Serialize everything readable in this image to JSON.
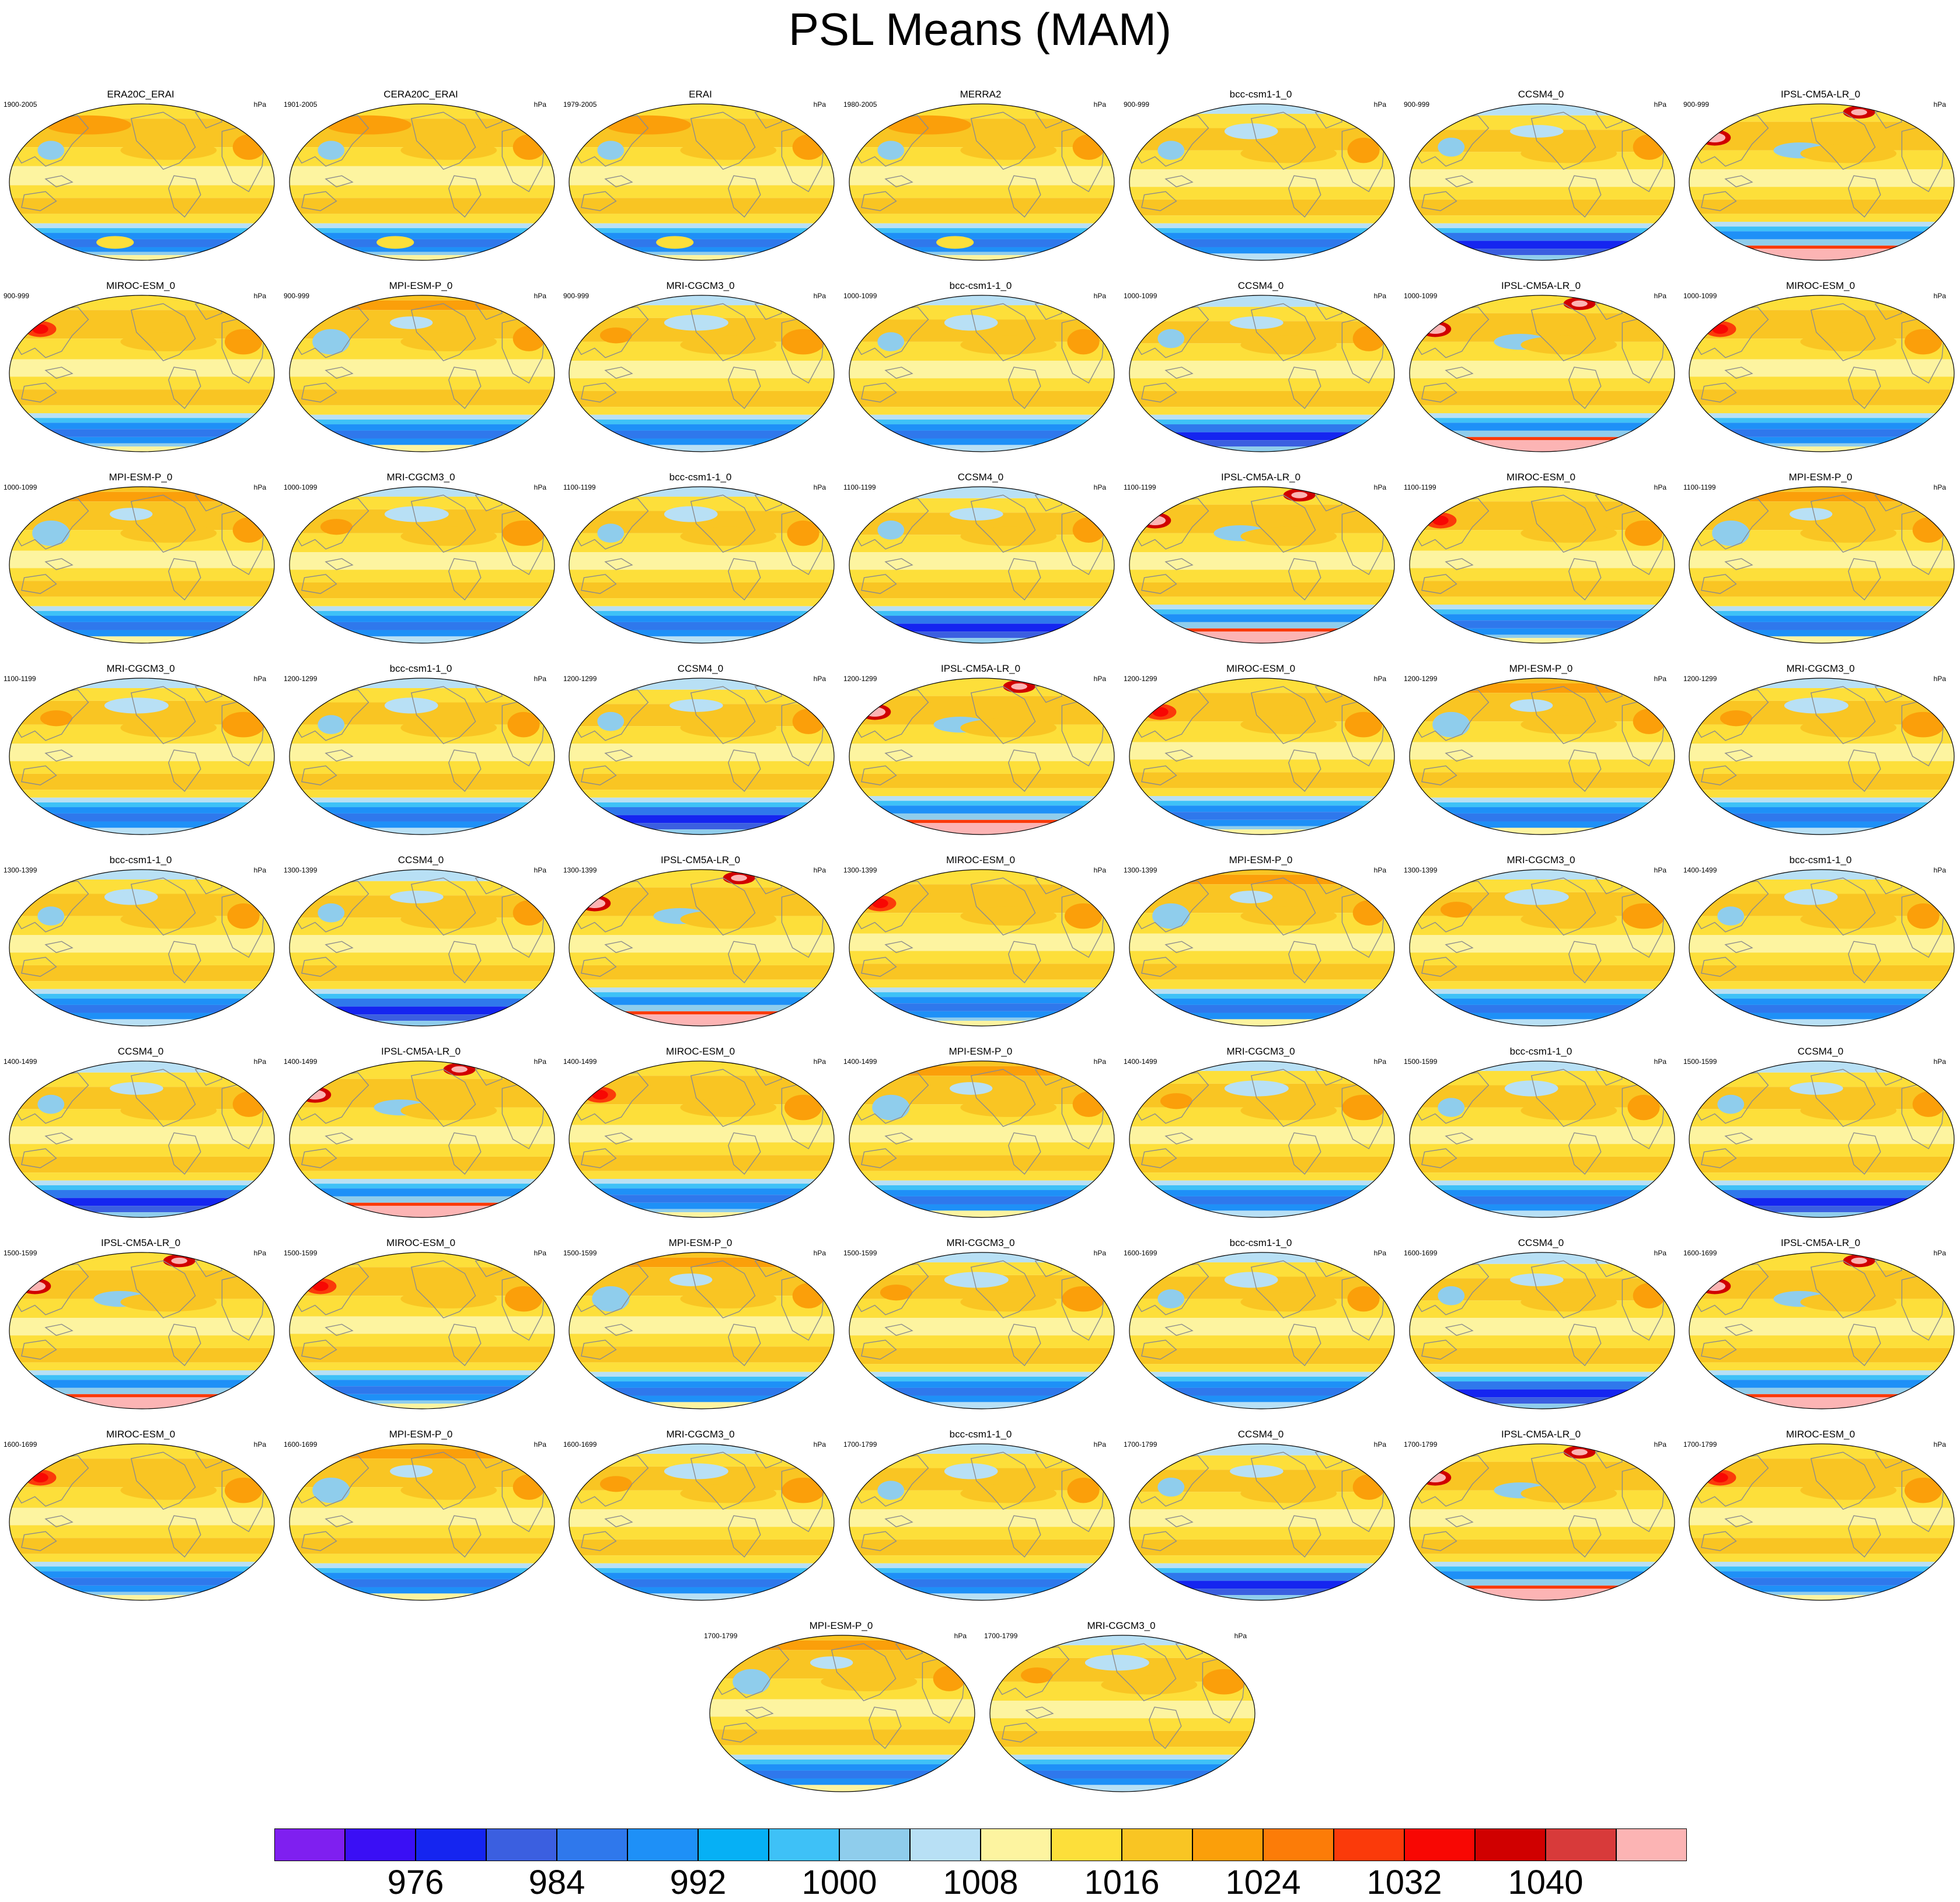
{
  "title": "PSL Means (MAM)",
  "units": "hPa",
  "palette": {
    "cold_deep": "#7f1ff0",
    "low": "#3b5fe0",
    "mid_low": "#19a8f5",
    "mid": "#b8e0f5",
    "mid_high": "#fdf4a0",
    "high": "#f9c523",
    "very_high": "#ff3b0d",
    "extreme": "#fcb4b4",
    "continent": "#8c8c8c"
  },
  "panels": [
    {
      "model": "ERA20C_ERAI",
      "years": "1900-2005",
      "style": "obs"
    },
    {
      "model": "CERA20C_ERAI",
      "years": "1901-2005",
      "style": "obs"
    },
    {
      "model": "ERAI",
      "years": "1979-2005",
      "style": "obs"
    },
    {
      "model": "MERRA2",
      "years": "1980-2005",
      "style": "obs"
    },
    {
      "model": "bcc-csm1-1_0",
      "years": "900-999",
      "style": "bcc"
    },
    {
      "model": "CCSM4_0",
      "years": "900-999",
      "style": "ccsm"
    },
    {
      "model": "IPSL-CM5A-LR_0",
      "years": "900-999",
      "style": "ipsl"
    },
    {
      "model": "MIROC-ESM_0",
      "years": "900-999",
      "style": "miroc"
    },
    {
      "model": "MPI-ESM-P_0",
      "years": "900-999",
      "style": "mpi"
    },
    {
      "model": "MRI-CGCM3_0",
      "years": "900-999",
      "style": "mri"
    },
    {
      "model": "bcc-csm1-1_0",
      "years": "1000-1099",
      "style": "bcc"
    },
    {
      "model": "CCSM4_0",
      "years": "1000-1099",
      "style": "ccsm"
    },
    {
      "model": "IPSL-CM5A-LR_0",
      "years": "1000-1099",
      "style": "ipsl"
    },
    {
      "model": "MIROC-ESM_0",
      "years": "1000-1099",
      "style": "miroc"
    },
    {
      "model": "MPI-ESM-P_0",
      "years": "1000-1099",
      "style": "mpi"
    },
    {
      "model": "MRI-CGCM3_0",
      "years": "1000-1099",
      "style": "mri"
    },
    {
      "model": "bcc-csm1-1_0",
      "years": "1100-1199",
      "style": "bcc"
    },
    {
      "model": "CCSM4_0",
      "years": "1100-1199",
      "style": "ccsm"
    },
    {
      "model": "IPSL-CM5A-LR_0",
      "years": "1100-1199",
      "style": "ipsl"
    },
    {
      "model": "MIROC-ESM_0",
      "years": "1100-1199",
      "style": "miroc"
    },
    {
      "model": "MPI-ESM-P_0",
      "years": "1100-1199",
      "style": "mpi"
    },
    {
      "model": "MRI-CGCM3_0",
      "years": "1100-1199",
      "style": "mri"
    },
    {
      "model": "bcc-csm1-1_0",
      "years": "1200-1299",
      "style": "bcc"
    },
    {
      "model": "CCSM4_0",
      "years": "1200-1299",
      "style": "ccsm"
    },
    {
      "model": "IPSL-CM5A-LR_0",
      "years": "1200-1299",
      "style": "ipsl"
    },
    {
      "model": "MIROC-ESM_0",
      "years": "1200-1299",
      "style": "miroc"
    },
    {
      "model": "MPI-ESM-P_0",
      "years": "1200-1299",
      "style": "mpi"
    },
    {
      "model": "MRI-CGCM3_0",
      "years": "1200-1299",
      "style": "mri"
    },
    {
      "model": "bcc-csm1-1_0",
      "years": "1300-1399",
      "style": "bcc"
    },
    {
      "model": "CCSM4_0",
      "years": "1300-1399",
      "style": "ccsm"
    },
    {
      "model": "IPSL-CM5A-LR_0",
      "years": "1300-1399",
      "style": "ipsl"
    },
    {
      "model": "MIROC-ESM_0",
      "years": "1300-1399",
      "style": "miroc"
    },
    {
      "model": "MPI-ESM-P_0",
      "years": "1300-1399",
      "style": "mpi"
    },
    {
      "model": "MRI-CGCM3_0",
      "years": "1300-1399",
      "style": "mri"
    },
    {
      "model": "bcc-csm1-1_0",
      "years": "1400-1499",
      "style": "bcc"
    },
    {
      "model": "CCSM4_0",
      "years": "1400-1499",
      "style": "ccsm"
    },
    {
      "model": "IPSL-CM5A-LR_0",
      "years": "1400-1499",
      "style": "ipsl"
    },
    {
      "model": "MIROC-ESM_0",
      "years": "1400-1499",
      "style": "miroc"
    },
    {
      "model": "MPI-ESM-P_0",
      "years": "1400-1499",
      "style": "mpi"
    },
    {
      "model": "MRI-CGCM3_0",
      "years": "1400-1499",
      "style": "mri"
    },
    {
      "model": "bcc-csm1-1_0",
      "years": "1500-1599",
      "style": "bcc"
    },
    {
      "model": "CCSM4_0",
      "years": "1500-1599",
      "style": "ccsm"
    },
    {
      "model": "IPSL-CM5A-LR_0",
      "years": "1500-1599",
      "style": "ipsl"
    },
    {
      "model": "MIROC-ESM_0",
      "years": "1500-1599",
      "style": "miroc"
    },
    {
      "model": "MPI-ESM-P_0",
      "years": "1500-1599",
      "style": "mpi"
    },
    {
      "model": "MRI-CGCM3_0",
      "years": "1500-1599",
      "style": "mri"
    },
    {
      "model": "bcc-csm1-1_0",
      "years": "1600-1699",
      "style": "bcc"
    },
    {
      "model": "CCSM4_0",
      "years": "1600-1699",
      "style": "ccsm"
    },
    {
      "model": "IPSL-CM5A-LR_0",
      "years": "1600-1699",
      "style": "ipsl"
    },
    {
      "model": "MIROC-ESM_0",
      "years": "1600-1699",
      "style": "miroc"
    },
    {
      "model": "MPI-ESM-P_0",
      "years": "1600-1699",
      "style": "mpi"
    },
    {
      "model": "MRI-CGCM3_0",
      "years": "1600-1699",
      "style": "mri"
    },
    {
      "model": "bcc-csm1-1_0",
      "years": "1700-1799",
      "style": "bcc"
    },
    {
      "model": "CCSM4_0",
      "years": "1700-1799",
      "style": "ccsm"
    },
    {
      "model": "IPSL-CM5A-LR_0",
      "years": "1700-1799",
      "style": "ipsl"
    },
    {
      "model": "MIROC-ESM_0",
      "years": "1700-1799",
      "style": "miroc"
    },
    {
      "model": "MPI-ESM-P_0",
      "years": "1700-1799",
      "style": "mpi"
    },
    {
      "model": "MRI-CGCM3_0",
      "years": "1700-1799",
      "style": "mri"
    }
  ],
  "colorbar": {
    "colors": [
      "#7f1ff0",
      "#3a0ff5",
      "#1525f0",
      "#3b5fe0",
      "#2f78ec",
      "#1e90f7",
      "#06b0f5",
      "#3ec1f7",
      "#8fcdec",
      "#b8e0f5",
      "#fdf4a0",
      "#fddf3a",
      "#f9c523",
      "#fb9f0a",
      "#fc7c08",
      "#fb3a0a",
      "#f80703",
      "#d00000",
      "#d83a3a",
      "#fcb4b4"
    ],
    "tick_labels": [
      "976",
      "984",
      "992",
      "1000",
      "1008",
      "1016",
      "1024",
      "1032",
      "1040"
    ]
  }
}
